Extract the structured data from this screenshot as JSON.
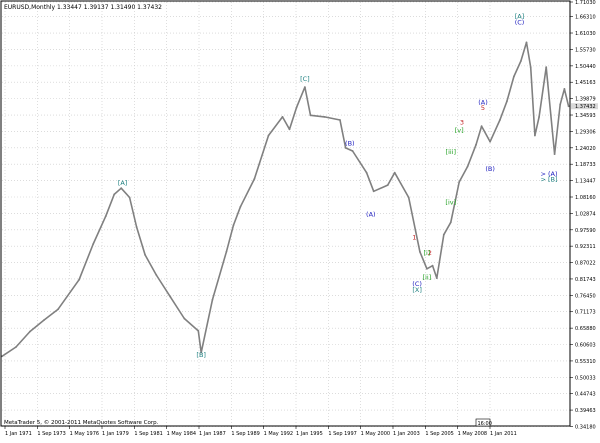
{
  "chart_data": {
    "type": "line",
    "title": "EURUSD,Monthly  1.33447 1.39137 1.31490 1.37432",
    "footer": "MetaTrader 5, © 2001-2011 MetaQuotes Software Corp.",
    "scale_badge": "16:00",
    "current_price_label": "1.37432",
    "ylim": [
      0.3433,
      1.7103
    ],
    "y_ticks": [
      "1.71030",
      "1.66310",
      "1.61030",
      "1.55730",
      "1.50440",
      "1.45163",
      "1.39879",
      "1.34593",
      "1.29306",
      "1.24020",
      "1.18733",
      "1.13447",
      "1.08160",
      "1.02874",
      "0.97590",
      "0.92311",
      "0.87022",
      "0.81743",
      "0.76450",
      "0.71173",
      "0.65880",
      "0.60603",
      "0.55310",
      "0.50033",
      "0.44743",
      "0.39463",
      "0.34180"
    ],
    "x_tick_labels": [
      "1 Jan 1971",
      "1 Sep 1973",
      "1 May 1976",
      "1 Jan 1979",
      "1 Sep 1981",
      "1 May 1984",
      "1 Jan 1987",
      "1 Sep 1989",
      "1 May 1992",
      "1 Jan 1995",
      "1 Sep 1997",
      "1 May 2000",
      "1 Jan 2003",
      "1 Sep 2005",
      "1 May 2008",
      "1 Jan 2011"
    ],
    "series": [
      {
        "color": "#808080",
        "x": [
          1971.0,
          1972.0,
          1973.0,
          1974.0,
          1975.0,
          1976.5,
          1977.5,
          1978.4,
          1979.0,
          1979.5,
          1980.1,
          1980.6,
          1981.2,
          1982.0,
          1983.0,
          1984.0,
          1985.0,
          1985.2,
          1986.0,
          1987.0,
          1987.5,
          1988.0,
          1989.0,
          1990.0,
          1991.0,
          1991.5,
          1992.0,
          1992.6,
          1993.0,
          1994.0,
          1995.1,
          1995.5,
          1996.0,
          1997.0,
          1997.5,
          1998.5,
          1999.0,
          2000.0,
          2000.8,
          2001.3,
          2001.7,
          2002.0,
          2002.5,
          2003.0,
          2003.6,
          2004.2,
          2004.8,
          2005.2,
          2005.8,
          2006.5,
          2007.0,
          2007.5,
          2008.0,
          2008.4,
          2008.7,
          2009.0,
          2009.3,
          2009.8,
          2010.4,
          2010.8,
          2011.1,
          2011.4
        ],
        "y": [
          0.568,
          0.598,
          0.648,
          0.685,
          0.72,
          0.815,
          0.93,
          1.02,
          1.09,
          1.11,
          1.08,
          0.985,
          0.895,
          0.83,
          0.76,
          0.69,
          0.65,
          0.58,
          0.75,
          0.905,
          0.99,
          1.05,
          1.14,
          1.28,
          1.34,
          1.3,
          1.37,
          1.436,
          1.345,
          1.34,
          1.33,
          1.24,
          1.23,
          1.16,
          1.1,
          1.12,
          1.16,
          1.08,
          0.905,
          0.85,
          0.86,
          0.82,
          0.96,
          1.0,
          1.13,
          1.18,
          1.25,
          1.31,
          1.26,
          1.33,
          1.39,
          1.47,
          1.52,
          1.58,
          1.5,
          1.28,
          1.34,
          1.5,
          1.22,
          1.38,
          1.43,
          1.374
        ]
      }
    ],
    "wave_labels": [
      {
        "text": "[A]",
        "x": 1979.6,
        "y": 1.12,
        "color": "#1e8080"
      },
      {
        "text": "[B]",
        "x": 1985.2,
        "y": 0.565,
        "color": "#1e8080"
      },
      {
        "text": "[C]",
        "x": 1992.6,
        "y": 1.455,
        "color": "#1e8080"
      },
      {
        "text": "(B)",
        "x": 1995.8,
        "y": 1.248,
        "color": "#2020c0"
      },
      {
        "text": "(A)",
        "x": 1997.3,
        "y": 1.018,
        "color": "#2020c0"
      },
      {
        "text": "1",
        "x": 2000.4,
        "y": 0.945,
        "color": "#c02020"
      },
      {
        "text": "2",
        "x": 2001.5,
        "y": 0.895,
        "color": "#c02020"
      },
      {
        "text": "(C)",
        "x": 2000.6,
        "y": 0.795,
        "color": "#2020c0"
      },
      {
        "text": "[X]",
        "x": 2000.6,
        "y": 0.775,
        "color": "#1e8080"
      },
      {
        "text": "[i]",
        "x": 2001.3,
        "y": 0.895,
        "color": "#20a020"
      },
      {
        "text": "[ii]",
        "x": 2001.3,
        "y": 0.815,
        "color": "#20a020"
      },
      {
        "text": "[iii]",
        "x": 2003.0,
        "y": 1.22,
        "color": "#20a020"
      },
      {
        "text": "[iv]",
        "x": 2003.0,
        "y": 1.058,
        "color": "#20a020"
      },
      {
        "text": "[v]",
        "x": 2003.6,
        "y": 1.29,
        "color": "#20a020"
      },
      {
        "text": "3",
        "x": 2003.8,
        "y": 1.315,
        "color": "#c02020"
      },
      {
        "text": "(A)",
        "x": 2005.3,
        "y": 1.38,
        "color": "#2020c0"
      },
      {
        "text": "5",
        "x": 2005.3,
        "y": 1.362,
        "color": "#c02020"
      },
      {
        "text": "(B)",
        "x": 2005.8,
        "y": 1.165,
        "color": "#2020c0"
      },
      {
        "text": "[A]",
        "x": 2007.9,
        "y": 1.657,
        "color": "#1e8080"
      },
      {
        "text": "(C)",
        "x": 2007.9,
        "y": 1.638,
        "color": "#2020c0"
      },
      {
        "text": "> (A)",
        "x": 2010.0,
        "y": 1.15,
        "color": "#2020c0"
      },
      {
        "text": "> [B]",
        "x": 2010.0,
        "y": 1.132,
        "color": "#1e8080"
      }
    ],
    "grid": true,
    "grid_style": "dotted"
  }
}
